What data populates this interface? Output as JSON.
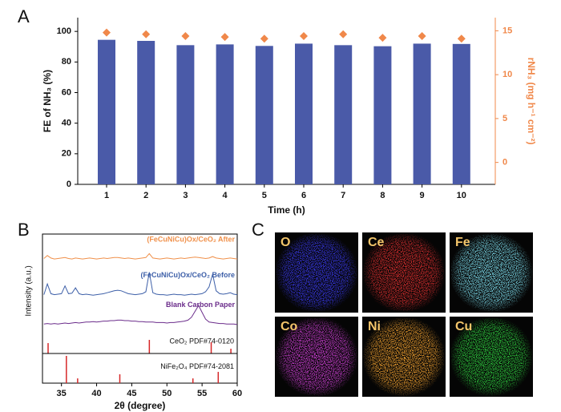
{
  "chart_data": [
    {
      "type": "bar",
      "panel": "A",
      "categories": [
        "1",
        "2",
        "3",
        "4",
        "5",
        "6",
        "7",
        "8",
        "9",
        "10"
      ],
      "xlabel": "Time (h)",
      "ylabel": "FE of NH₃ (%)",
      "y2label": "rNH₃ (mg h⁻¹ cm⁻²)",
      "ylim": [
        0,
        109
      ],
      "yticks": [
        0,
        20,
        40,
        60,
        80,
        100
      ],
      "y2lim": [
        -2.5,
        16.5
      ],
      "y2ticks": [
        0,
        5,
        10,
        15
      ],
      "y2color": "#f0884a",
      "series": [
        {
          "color": "#4a5aa8",
          "values": [
            94.5,
            93.8,
            91,
            91.5,
            90.5,
            92,
            91,
            90.3,
            92,
            91.8
          ]
        },
        {
          "color": "#f0884a",
          "axis": "y2",
          "marker": "diamond",
          "values": [
            14.8,
            14.6,
            14.4,
            14.3,
            14.1,
            14.4,
            14.6,
            14.2,
            14.4,
            14.1
          ]
        }
      ]
    },
    {
      "type": "line",
      "panel": "B",
      "xlabel": "2θ (degree)",
      "ylabel": "Intensity (a.u.)",
      "xlim": [
        32.3,
        60
      ],
      "xticks": [
        35,
        40,
        45,
        50,
        55,
        60
      ],
      "ylim": [
        0,
        100
      ],
      "x": [
        32.5,
        33,
        33.5,
        34,
        34.5,
        35,
        35.5,
        36,
        36.5,
        37,
        37.5,
        38,
        38.5,
        39,
        39.5,
        40,
        40.5,
        41,
        41.5,
        42,
        42.5,
        43,
        43.5,
        44,
        44.5,
        45,
        45.5,
        46,
        46.5,
        47,
        47.5,
        48,
        48.5,
        49,
        49.5,
        50,
        50.5,
        51,
        51.5,
        52,
        52.5,
        53,
        53.5,
        54,
        54.5,
        55,
        55.5,
        56,
        56.5,
        57,
        57.5,
        58,
        58.5,
        59,
        59.5,
        60
      ],
      "series": [
        {
          "name": "(FeCuNiCu)Ox/CeO₂ After",
          "color": "#f0904a",
          "values": [
            75,
            78,
            75.5,
            74.5,
            75,
            75.5,
            76,
            75,
            74.5,
            75.5,
            75,
            74.5,
            75,
            75.5,
            75,
            74.5,
            75,
            75.5,
            75,
            75.5,
            76,
            76,
            75.5,
            75,
            75.5,
            75,
            74.5,
            75,
            75.5,
            76,
            80,
            75.5,
            75,
            74.5,
            75,
            75.5,
            75,
            74.5,
            75,
            75.5,
            75,
            75.5,
            76,
            76.5,
            76,
            75.5,
            75,
            75.5,
            77,
            75.5,
            75,
            74.5,
            75,
            75.5,
            75,
            74.5
          ]
        },
        {
          "name": "(FeCuNiCu)Ox/CeO₂ Before",
          "color": "#3d5fa8",
          "values": [
            38,
            49,
            39,
            38,
            38.5,
            39,
            47,
            39,
            39.5,
            45,
            39,
            38,
            38.5,
            38,
            37.5,
            38,
            38.5,
            39,
            40,
            41,
            42,
            42.5,
            42,
            40.5,
            39,
            38.5,
            38,
            38.5,
            39,
            41,
            61,
            40,
            38.5,
            38,
            38,
            37.5,
            38,
            38.5,
            38,
            38,
            37.5,
            38,
            38.5,
            38,
            38.5,
            39,
            41,
            46,
            59,
            42,
            39,
            38.5,
            39,
            40,
            38.5,
            38
          ]
        },
        {
          "name": "Blank Carbon Paper",
          "color": "#6b2d8b",
          "values": [
            8,
            8.5,
            8,
            8.5,
            8,
            8.5,
            9,
            8.5,
            9,
            9.5,
            9,
            9.5,
            10,
            10,
            10.5,
            10,
            10.5,
            11,
            11,
            11.5,
            11.5,
            12,
            12,
            11.5,
            11.5,
            11,
            11,
            10.5,
            10.5,
            10,
            10,
            10,
            9.5,
            9.5,
            9.5,
            9,
            9.5,
            9.5,
            10,
            10.5,
            11,
            12,
            15,
            21,
            27,
            20,
            13,
            10,
            9.5,
            9,
            8.5,
            8.5,
            8,
            8,
            8,
            7.5
          ]
        }
      ]
    },
    {
      "type": "stem",
      "label": "CeO₂ PDF#74-0120",
      "color": "#d62728",
      "xlim": [
        32.3,
        60
      ],
      "ylim": [
        0,
        100
      ],
      "x": [
        33.1,
        47.5,
        56.3,
        59.1
      ],
      "values": [
        48,
        63,
        52,
        22
      ]
    },
    {
      "type": "stem",
      "label": "NiFe₂O₄ PDF#74-2081",
      "color": "#d62728",
      "xlim": [
        32.3,
        60
      ],
      "ylim": [
        0,
        100
      ],
      "x": [
        35.7,
        37.3,
        43.3,
        53.7,
        57.3
      ],
      "values": [
        92,
        16,
        30,
        16,
        38
      ]
    }
  ],
  "panel_c": {
    "panel": "C",
    "maps": [
      {
        "label": "O",
        "color": "#3a3af0"
      },
      {
        "label": "Ce",
        "color": "#e03030"
      },
      {
        "label": "Fe",
        "color": "#7fe0f0"
      },
      {
        "label": "Co",
        "color": "#d040d8"
      },
      {
        "label": "Ni",
        "color": "#f0a030"
      },
      {
        "label": "Cu",
        "color": "#30d040"
      }
    ]
  }
}
